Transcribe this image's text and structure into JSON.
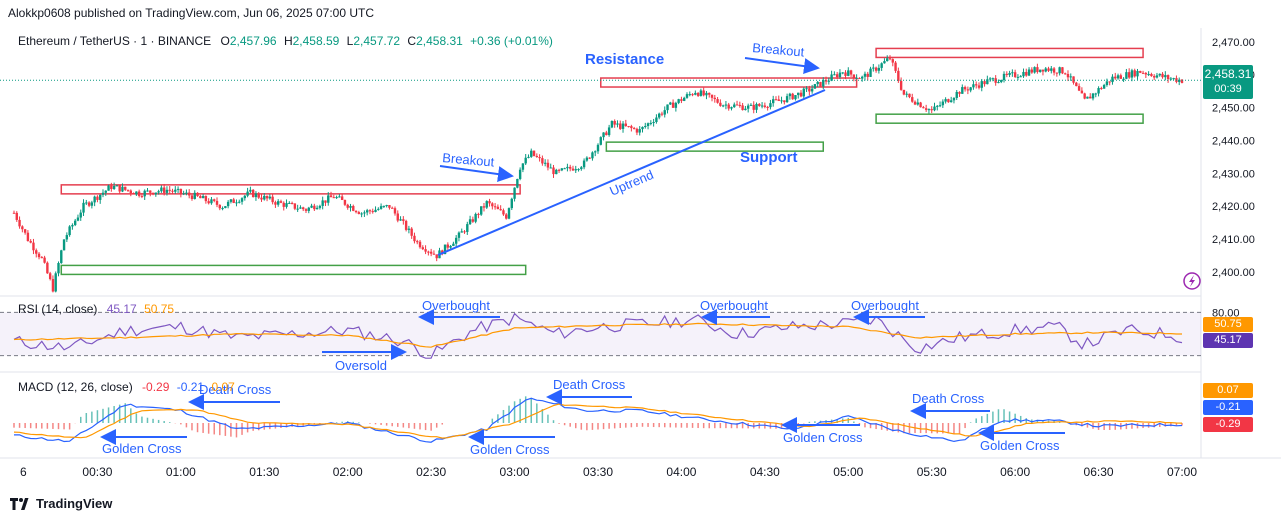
{
  "header": {
    "publisher": "Alokkp0608 published on TradingView.com, Jun 06, 2025 07:00 UTC"
  },
  "symbol": {
    "name": "Ethereum / TetherUS · 1 · BINANCE",
    "o_label": "O",
    "o": "2,457.96",
    "h_label": "H",
    "h": "2,458.59",
    "l_label": "L",
    "l": "2,457.72",
    "c_label": "C",
    "c": "2,458.31",
    "change": "+0.36 (+0.01%)"
  },
  "price_box": {
    "price": "2,458.31",
    "countdown": "00:39"
  },
  "rsi": {
    "label": "RSI (14, close)",
    "rsi": "45.17",
    "ma": "50.75",
    "level_label": "80.00"
  },
  "macd": {
    "label": "MACD (12, 26, close)",
    "hist": "-0.29",
    "macd": "-0.21",
    "signal": "0.07"
  },
  "footer": {
    "brand": "TradingView"
  },
  "colors": {
    "up": "#089981",
    "down": "#f23645",
    "annotation": "#2962ff",
    "resistance": "#e53e4f",
    "support": "#43a047",
    "rsi_line": "#7e57c2",
    "ma_line": "#ff9800"
  },
  "chart_data": [
    {
      "type": "candlestick",
      "title": "Ethereum / TetherUS · 1 · BINANCE",
      "ylim": [
        2393,
        2473
      ],
      "yticks": [
        "2,400.00",
        "2,410.00",
        "2,420.00",
        "2,430.00",
        "2,440.00",
        "2,450.00",
        "2,460.00",
        "2,470.00"
      ],
      "ytick_values": [
        2400,
        2410,
        2420,
        2430,
        2440,
        2450,
        2460,
        2470
      ],
      "xticks": [
        "6",
        "00:30",
        "01:00",
        "01:30",
        "02:00",
        "02:30",
        "03:00",
        "03:30",
        "04:00",
        "04:30",
        "05:00",
        "05:30",
        "06:00",
        "06:30",
        "07:00"
      ],
      "xtick_minutes": [
        0,
        30,
        60,
        90,
        120,
        150,
        180,
        210,
        240,
        270,
        300,
        330,
        360,
        390,
        420
      ],
      "last_price": 2458.31,
      "close_path": [
        [
          0,
          2418
        ],
        [
          5,
          2410
        ],
        [
          10,
          2404
        ],
        [
          14,
          2395
        ],
        [
          18,
          2410
        ],
        [
          25,
          2420
        ],
        [
          35,
          2426
        ],
        [
          45,
          2424
        ],
        [
          55,
          2425
        ],
        [
          65,
          2423
        ],
        [
          75,
          2420
        ],
        [
          85,
          2424
        ],
        [
          95,
          2421
        ],
        [
          105,
          2419
        ],
        [
          115,
          2423
        ],
        [
          125,
          2418
        ],
        [
          135,
          2420
        ],
        [
          145,
          2409
        ],
        [
          152,
          2405
        ],
        [
          160,
          2411
        ],
        [
          170,
          2421
        ],
        [
          177,
          2417
        ],
        [
          182,
          2432
        ],
        [
          186,
          2436
        ],
        [
          195,
          2430
        ],
        [
          205,
          2433
        ],
        [
          215,
          2445
        ],
        [
          225,
          2443
        ],
        [
          235,
          2450
        ],
        [
          245,
          2455
        ],
        [
          255,
          2451
        ],
        [
          265,
          2450
        ],
        [
          275,
          2452
        ],
        [
          285,
          2455
        ],
        [
          298,
          2461
        ],
        [
          305,
          2459
        ],
        [
          315,
          2465
        ],
        [
          320,
          2454
        ],
        [
          330,
          2449
        ],
        [
          340,
          2455
        ],
        [
          350,
          2458
        ],
        [
          360,
          2460
        ],
        [
          370,
          2462
        ],
        [
          378,
          2461
        ],
        [
          385,
          2452
        ],
        [
          395,
          2459
        ],
        [
          405,
          2461
        ],
        [
          415,
          2459
        ],
        [
          420,
          2458.3
        ]
      ],
      "annotations": [
        {
          "text": "Resistance",
          "kind": "label"
        },
        {
          "text": "Support",
          "kind": "label"
        },
        {
          "text": "Breakout",
          "kind": "arrow"
        },
        {
          "text": "Breakout",
          "kind": "arrow"
        },
        {
          "text": "Uptrend",
          "kind": "trendline"
        }
      ],
      "zones": [
        {
          "kind": "resistance",
          "from_min": 17,
          "to_min": 182,
          "price_low": 2424.5,
          "price_high": 2426.5
        },
        {
          "kind": "support",
          "from_min": 17,
          "to_min": 184,
          "price_low": 2400,
          "price_high": 2402
        },
        {
          "kind": "resistance",
          "from_min": 211,
          "to_min": 303,
          "price_low": 2457.5,
          "price_high": 2459
        },
        {
          "kind": "support",
          "from_min": 213,
          "to_min": 291,
          "price_low": 2437.5,
          "price_high": 2439.5
        },
        {
          "kind": "resistance",
          "from_min": 310,
          "to_min": 406,
          "price_low": 2466,
          "price_high": 2468
        },
        {
          "kind": "support",
          "from_min": 310,
          "to_min": 406,
          "price_low": 2446,
          "price_high": 2448
        }
      ]
    },
    {
      "type": "line",
      "title": "RSI (14, close)",
      "ylim": [
        0,
        100
      ],
      "levels": [
        80,
        20
      ],
      "series": [
        {
          "name": "RSI",
          "values_path": [
            [
              0,
              40
            ],
            [
              20,
              30
            ],
            [
              40,
              55
            ],
            [
              60,
              60
            ],
            [
              80,
              45
            ],
            [
              100,
              50
            ],
            [
              120,
              55
            ],
            [
              140,
              40
            ],
            [
              150,
              20
            ],
            [
              165,
              55
            ],
            [
              180,
              72
            ],
            [
              195,
              50
            ],
            [
              210,
              60
            ],
            [
              230,
              65
            ],
            [
              245,
              70
            ],
            [
              260,
              50
            ],
            [
              280,
              60
            ],
            [
              300,
              65
            ],
            [
              310,
              70
            ],
            [
              325,
              30
            ],
            [
              340,
              45
            ],
            [
              360,
              55
            ],
            [
              375,
              60
            ],
            [
              385,
              35
            ],
            [
              400,
              55
            ],
            [
              415,
              50
            ],
            [
              420,
              45.17
            ]
          ]
        },
        {
          "name": "RSI-based MA",
          "values_path": [
            [
              0,
              42
            ],
            [
              40,
              45
            ],
            [
              80,
              50
            ],
            [
              120,
              48
            ],
            [
              150,
              32
            ],
            [
              180,
              58
            ],
            [
              210,
              62
            ],
            [
              250,
              64
            ],
            [
              300,
              60
            ],
            [
              325,
              45
            ],
            [
              360,
              50
            ],
            [
              390,
              52
            ],
            [
              420,
              50.75
            ]
          ]
        }
      ],
      "annotations": [
        "Overbought",
        "Overbought",
        "Overbought",
        "Oversold"
      ]
    },
    {
      "type": "line",
      "title": "MACD (12, 26, close)",
      "series": [
        {
          "name": "MACD",
          "values_path": [
            [
              0,
              -2
            ],
            [
              20,
              -3
            ],
            [
              40,
              3
            ],
            [
              60,
              2
            ],
            [
              80,
              -1
            ],
            [
              100,
              -0.5
            ],
            [
              120,
              0
            ],
            [
              150,
              -3
            ],
            [
              170,
              -1
            ],
            [
              185,
              4
            ],
            [
              205,
              2
            ],
            [
              225,
              2
            ],
            [
              250,
              0.5
            ],
            [
              280,
              -1
            ],
            [
              300,
              1
            ],
            [
              320,
              -1.5
            ],
            [
              340,
              -3
            ],
            [
              355,
              0.5
            ],
            [
              375,
              0.3
            ],
            [
              390,
              -0.5
            ],
            [
              420,
              -0.21
            ]
          ]
        },
        {
          "name": "Signal",
          "values_path": [
            [
              0,
              -1.5
            ],
            [
              25,
              -2.5
            ],
            [
              45,
              2
            ],
            [
              65,
              2.2
            ],
            [
              85,
              0
            ],
            [
              120,
              -0.2
            ],
            [
              155,
              -2.5
            ],
            [
              180,
              0
            ],
            [
              195,
              3
            ],
            [
              225,
              2.4
            ],
            [
              255,
              0.8
            ],
            [
              285,
              -0.6
            ],
            [
              305,
              0.8
            ],
            [
              325,
              -0.8
            ],
            [
              345,
              -2.2
            ],
            [
              365,
              0
            ],
            [
              395,
              0.3
            ],
            [
              420,
              0.07
            ]
          ]
        }
      ],
      "annotations": [
        "Death Cross",
        "Death Cross",
        "Death Cross",
        "Golden Cross",
        "Golden Cross",
        "Golden Cross",
        "Golden Cross"
      ]
    }
  ]
}
